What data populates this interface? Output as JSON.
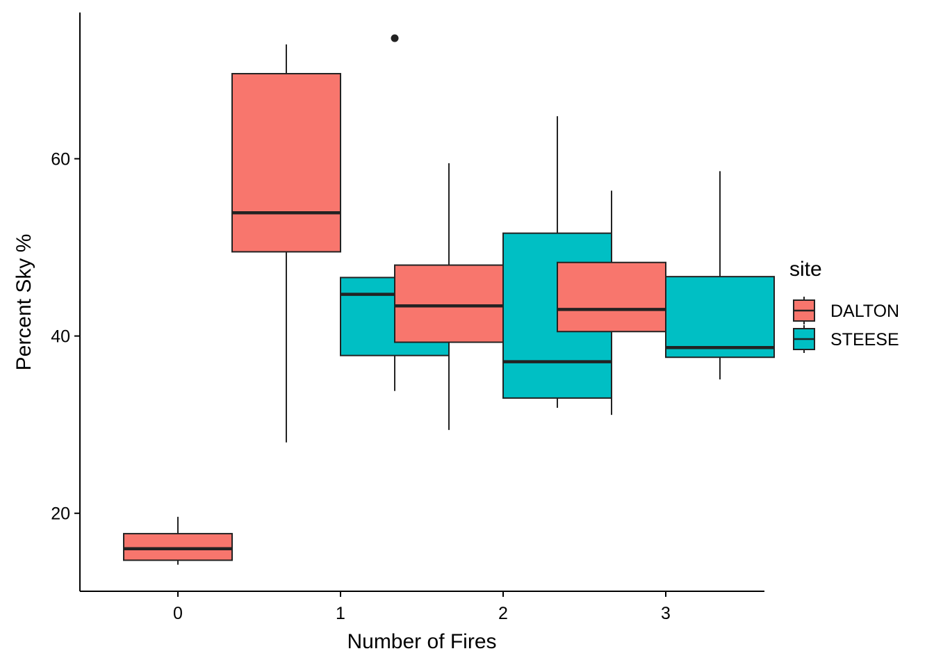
{
  "chart_data": {
    "type": "boxplot",
    "title": "",
    "xlabel": "Number of Fires",
    "ylabel": "Percent Sky %",
    "categories": [
      "0",
      "1",
      "2",
      "3"
    ],
    "ylim": [
      11.2,
      76.5
    ],
    "yticks": [
      20,
      40,
      60
    ],
    "grid": false,
    "legend": {
      "title": "site",
      "position": "right",
      "entries": [
        "DALTON",
        "STEESE"
      ]
    },
    "series": [
      {
        "name": "DALTON",
        "color": "#F8766D",
        "boxes": [
          {
            "category": "0",
            "min": 14.2,
            "q1": 14.7,
            "median": 16.0,
            "q3": 17.7,
            "max": 19.6,
            "outliers": []
          },
          {
            "category": "1",
            "min": 28.0,
            "q1": 49.5,
            "median": 53.9,
            "q3": 69.6,
            "max": 72.9,
            "outliers": []
          },
          {
            "category": "2",
            "min": 29.4,
            "q1": 39.3,
            "median": 43.4,
            "q3": 48.0,
            "max": 59.5,
            "outliers": []
          },
          {
            "category": "3",
            "min": 31.1,
            "q1": 40.5,
            "median": 43.0,
            "q3": 48.3,
            "max": 56.4,
            "outliers": []
          }
        ]
      },
      {
        "name": "STEESE",
        "color": "#00BFC4",
        "boxes": [
          {
            "category": "0",
            "absent": true
          },
          {
            "category": "1",
            "min": 33.8,
            "q1": 37.8,
            "median": 44.7,
            "q3": 46.6,
            "max": 46.6,
            "outliers": [
              73.6
            ]
          },
          {
            "category": "2",
            "min": 31.9,
            "q1": 33.0,
            "median": 37.1,
            "q3": 51.6,
            "max": 64.8,
            "outliers": []
          },
          {
            "category": "3",
            "min": 35.1,
            "q1": 37.6,
            "median": 38.7,
            "q3": 46.7,
            "max": 58.6,
            "outliers": []
          }
        ]
      }
    ]
  }
}
